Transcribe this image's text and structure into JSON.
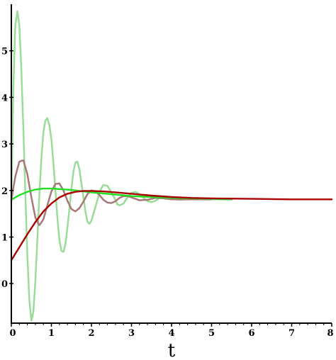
{
  "chart_data": {
    "type": "line",
    "title": "",
    "xlabel": "t",
    "ylabel": "",
    "xlim": [
      0,
      8
    ],
    "ylim": [
      -0.85,
      6.0
    ],
    "x_ticks": [
      0,
      1,
      2,
      3,
      4,
      5,
      6,
      7,
      8
    ],
    "x_tick_labels": [
      "0",
      "1",
      "2",
      "3",
      "4",
      "5",
      "6",
      "7",
      "8"
    ],
    "y_ticks": [
      0,
      1,
      2,
      3,
      4,
      5
    ],
    "y_tick_labels": [
      "0",
      "1",
      "2",
      "3",
      "4",
      "5"
    ],
    "grid": false,
    "legend": "none",
    "series": [
      {
        "color": "#98dc98",
        "style": "dotted",
        "x": [
          0,
          0.05,
          0.1,
          0.15,
          0.2,
          0.25,
          0.3,
          0.35,
          0.4,
          0.45,
          0.5,
          0.55,
          0.6,
          0.65,
          0.7,
          0.75,
          0.8,
          0.85,
          0.9,
          0.95,
          1.0,
          1.05,
          1.1,
          1.15,
          1.2,
          1.25,
          1.3,
          1.35,
          1.4,
          1.45,
          1.5,
          1.55,
          1.6,
          1.65,
          1.7,
          1.75,
          1.8,
          1.85,
          1.9,
          1.95,
          2.0,
          2.1,
          2.2,
          2.25,
          2.3,
          2.4,
          2.5,
          2.6,
          2.65,
          2.7,
          2.8,
          2.9,
          3.0,
          3.1,
          3.2,
          3.3,
          3.4,
          3.5,
          3.6,
          3.7,
          3.8,
          3.9,
          4.0,
          4.2,
          4.4,
          4.6,
          4.8,
          5.0,
          5.5
        ],
        "y": [
          1.75,
          4.2,
          5.55,
          5.85,
          5.55,
          4.6,
          3.3,
          1.9,
          0.6,
          -0.35,
          -0.8,
          -0.6,
          0.05,
          0.95,
          1.9,
          2.7,
          3.25,
          3.5,
          3.55,
          3.4,
          3.1,
          2.6,
          2.0,
          1.4,
          0.95,
          0.7,
          0.68,
          0.85,
          1.2,
          1.6,
          2.05,
          2.4,
          2.6,
          2.62,
          2.45,
          2.15,
          1.85,
          1.55,
          1.33,
          1.28,
          1.35,
          1.65,
          1.95,
          2.05,
          2.12,
          2.1,
          1.95,
          1.8,
          1.7,
          1.68,
          1.72,
          1.85,
          1.95,
          1.97,
          1.92,
          1.84,
          1.77,
          1.75,
          1.78,
          1.84,
          1.87,
          1.86,
          1.83,
          1.8,
          1.81,
          1.82,
          1.81,
          1.81,
          1.81
        ]
      },
      {
        "color": "#a87878",
        "style": "dotted",
        "x": [
          0,
          0.1,
          0.2,
          0.3,
          0.4,
          0.5,
          0.6,
          0.7,
          0.8,
          0.9,
          1.0,
          1.1,
          1.2,
          1.3,
          1.4,
          1.5,
          1.6,
          1.7,
          1.8,
          1.9,
          2.0,
          2.1,
          2.2,
          2.3,
          2.4,
          2.5,
          2.6,
          2.7,
          2.8,
          2.9,
          3.0,
          3.2,
          3.4,
          3.6,
          3.8,
          4.0,
          4.5,
          5.0
        ],
        "y": [
          1.8,
          2.3,
          2.62,
          2.65,
          2.35,
          1.85,
          1.42,
          1.25,
          1.38,
          1.68,
          1.98,
          2.14,
          2.15,
          2.0,
          1.78,
          1.6,
          1.55,
          1.62,
          1.76,
          1.92,
          2.0,
          1.98,
          1.9,
          1.8,
          1.74,
          1.73,
          1.77,
          1.84,
          1.88,
          1.88,
          1.85,
          1.79,
          1.8,
          1.84,
          1.83,
          1.81,
          1.81,
          1.81
        ]
      },
      {
        "color": "#22dd22",
        "style": "solid",
        "x": [
          0,
          0.2,
          0.4,
          0.6,
          0.8,
          1.0,
          1.2,
          1.5,
          2.0,
          2.5,
          3.0,
          3.5,
          4.0,
          4.5,
          5.0,
          5.5
        ],
        "y": [
          1.8,
          1.9,
          1.97,
          2.02,
          2.04,
          2.04,
          2.03,
          2.01,
          1.96,
          1.92,
          1.88,
          1.86,
          1.84,
          1.83,
          1.82,
          1.81
        ]
      },
      {
        "color": "#aa0000",
        "style": "solid",
        "x": [
          0,
          0.2,
          0.4,
          0.6,
          0.8,
          1.0,
          1.2,
          1.4,
          1.6,
          1.8,
          2.0,
          2.3,
          2.6,
          3.0,
          3.5,
          4.0,
          4.5,
          5.0,
          6.0,
          7.0,
          8.0
        ],
        "y": [
          0.5,
          0.78,
          1.06,
          1.32,
          1.55,
          1.72,
          1.85,
          1.93,
          1.97,
          1.99,
          1.99,
          1.98,
          1.96,
          1.93,
          1.89,
          1.86,
          1.84,
          1.83,
          1.82,
          1.81,
          1.81
        ]
      }
    ]
  }
}
